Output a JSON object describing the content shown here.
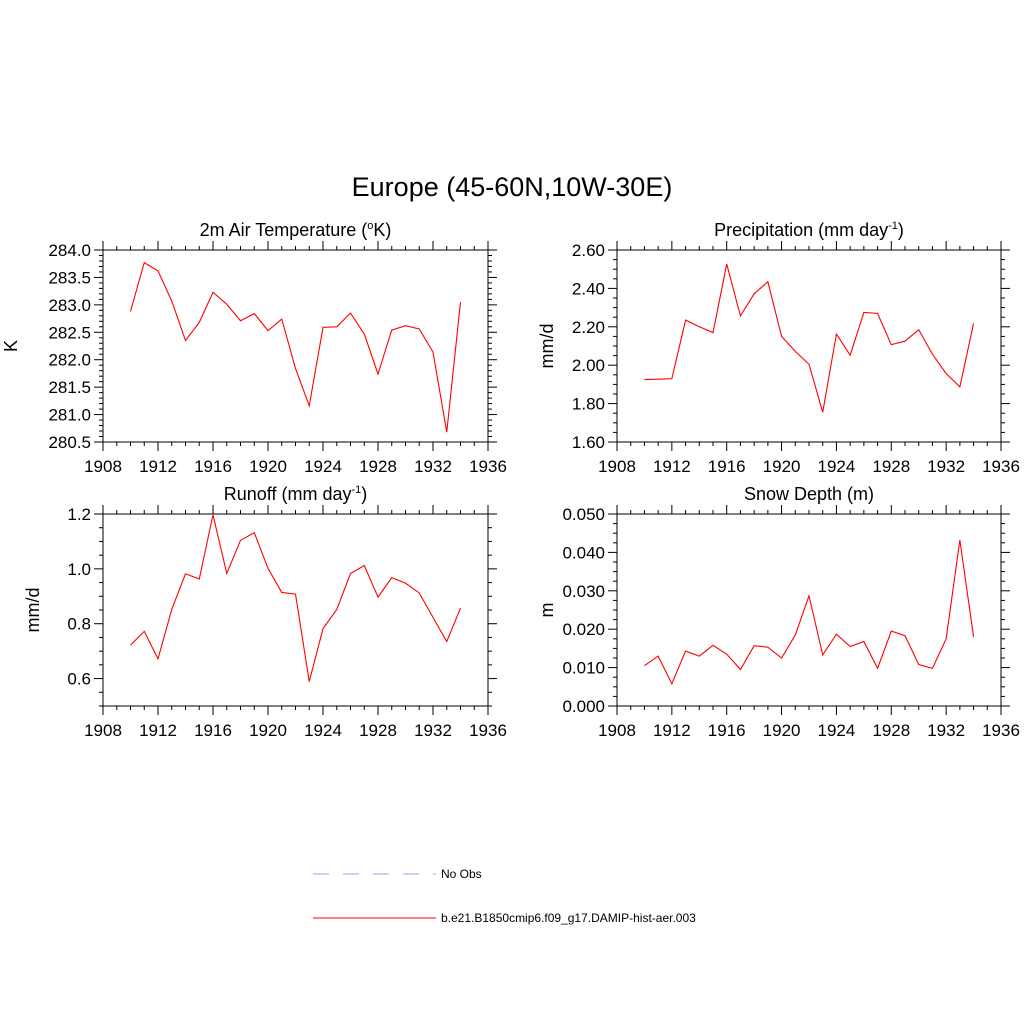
{
  "figure_title": "Europe (45-60N,10W-30E)",
  "legend": [
    {
      "label": "No Obs",
      "color": "#9f9fff",
      "style": "dashed"
    },
    {
      "label": "b.e21.B1850cmip6.f09_g17.DAMIP-hist-aer.003",
      "color": "#ff0000",
      "style": "solid"
    }
  ],
  "chart_data": [
    {
      "type": "line",
      "title": "2m Air Temperature (",
      "title_sup": "o",
      "title_suffix": "K)",
      "ylabel": "K",
      "xlim": [
        1908,
        1936
      ],
      "xticks": [
        "1908",
        "1912",
        "1916",
        "1920",
        "1924",
        "1928",
        "1932",
        "1936"
      ],
      "ylim": [
        280.5,
        284.0
      ],
      "yticks": [
        "280.5",
        "281.0",
        "281.5",
        "282.0",
        "282.5",
        "283.0",
        "283.5",
        "284.0"
      ],
      "ytick_values": [
        280.5,
        281.0,
        281.5,
        282.0,
        282.5,
        283.0,
        283.5,
        284.0
      ],
      "yminor": 0.1,
      "x": [
        1910,
        1911,
        1912,
        1913,
        1914,
        1915,
        1916,
        1917,
        1918,
        1919,
        1920,
        1921,
        1922,
        1923,
        1924,
        1925,
        1926,
        1927,
        1928,
        1929,
        1930,
        1931,
        1932,
        1933,
        1934
      ],
      "series": [
        {
          "color": "#ff0000",
          "values": [
            282.88,
            283.77,
            283.62,
            283.07,
            282.35,
            282.68,
            283.23,
            283.01,
            282.71,
            282.84,
            282.53,
            282.74,
            281.84,
            281.16,
            282.59,
            282.6,
            282.85,
            282.47,
            281.74,
            282.54,
            282.62,
            282.56,
            282.14,
            280.68,
            283.05
          ]
        }
      ]
    },
    {
      "type": "line",
      "title": "Precipitation (mm day",
      "title_sup": "-1",
      "title_suffix": ")",
      "ylabel": "mm/d",
      "xlim": [
        1908,
        1936
      ],
      "xticks": [
        "1908",
        "1912",
        "1916",
        "1920",
        "1924",
        "1928",
        "1932",
        "1936"
      ],
      "ylim": [
        1.6,
        2.6
      ],
      "yticks": [
        "1.60",
        "1.80",
        "2.00",
        "2.20",
        "2.40",
        "2.60"
      ],
      "ytick_values": [
        1.6,
        1.8,
        2.0,
        2.2,
        2.4,
        2.6
      ],
      "yminor": 0.05,
      "x": [
        1910,
        1911,
        1912,
        1913,
        1914,
        1915,
        1916,
        1917,
        1918,
        1919,
        1920,
        1921,
        1922,
        1923,
        1924,
        1925,
        1926,
        1927,
        1928,
        1929,
        1930,
        1931,
        1932,
        1933,
        1934
      ],
      "series": [
        {
          "color": "#ff0000",
          "values": [
            1.925,
            1.927,
            1.93,
            2.235,
            2.2,
            2.17,
            2.527,
            2.257,
            2.372,
            2.435,
            2.15,
            2.072,
            2.005,
            1.755,
            2.162,
            2.052,
            2.275,
            2.27,
            2.107,
            2.125,
            2.185,
            2.057,
            1.957,
            1.887,
            2.217
          ]
        }
      ]
    },
    {
      "type": "line",
      "title": "Runoff (mm day",
      "title_sup": "-1",
      "title_suffix": ")",
      "ylabel": "mm/d",
      "xlim": [
        1908,
        1936
      ],
      "xticks": [
        "1908",
        "1912",
        "1916",
        "1920",
        "1924",
        "1928",
        "1932",
        "1936"
      ],
      "ylim": [
        0.5,
        1.2
      ],
      "yticks": [
        "0.6",
        "0.8",
        "1.0",
        "1.2"
      ],
      "ytick_values": [
        0.6,
        0.8,
        1.0,
        1.2
      ],
      "yminor": 0.05,
      "x": [
        1910,
        1911,
        1912,
        1913,
        1914,
        1915,
        1916,
        1917,
        1918,
        1919,
        1920,
        1921,
        1922,
        1923,
        1924,
        1925,
        1926,
        1927,
        1928,
        1929,
        1930,
        1931,
        1932,
        1933,
        1934
      ],
      "series": [
        {
          "color": "#ff0000",
          "values": [
            0.722,
            0.772,
            0.672,
            0.852,
            0.982,
            0.963,
            1.197,
            0.983,
            1.104,
            1.132,
            1.002,
            0.914,
            0.908,
            0.589,
            0.782,
            0.852,
            0.983,
            1.012,
            0.897,
            0.968,
            0.948,
            0.912,
            0.823,
            0.735,
            0.857
          ]
        }
      ]
    },
    {
      "type": "line",
      "title": "Snow Depth (m)",
      "title_sup": "",
      "title_suffix": "",
      "ylabel": "m",
      "xlim": [
        1908,
        1936
      ],
      "xticks": [
        "1908",
        "1912",
        "1916",
        "1920",
        "1924",
        "1928",
        "1932",
        "1936"
      ],
      "ylim": [
        0.0,
        0.05
      ],
      "yticks": [
        "0.000",
        "0.010",
        "0.020",
        "0.030",
        "0.040",
        "0.050"
      ],
      "ytick_values": [
        0.0,
        0.01,
        0.02,
        0.03,
        0.04,
        0.05
      ],
      "yminor": 0.0025,
      "x": [
        1910,
        1911,
        1912,
        1913,
        1914,
        1915,
        1916,
        1917,
        1918,
        1919,
        1920,
        1921,
        1922,
        1923,
        1924,
        1925,
        1926,
        1927,
        1928,
        1929,
        1930,
        1931,
        1932,
        1933,
        1934
      ],
      "series": [
        {
          "color": "#ff0000",
          "values": [
            0.0105,
            0.013,
            0.0058,
            0.0143,
            0.013,
            0.0158,
            0.0135,
            0.0095,
            0.0157,
            0.0153,
            0.0125,
            0.0185,
            0.0287,
            0.0133,
            0.0187,
            0.0155,
            0.0168,
            0.0098,
            0.0195,
            0.0183,
            0.0108,
            0.0098,
            0.0175,
            0.0432,
            0.018
          ]
        }
      ]
    }
  ]
}
